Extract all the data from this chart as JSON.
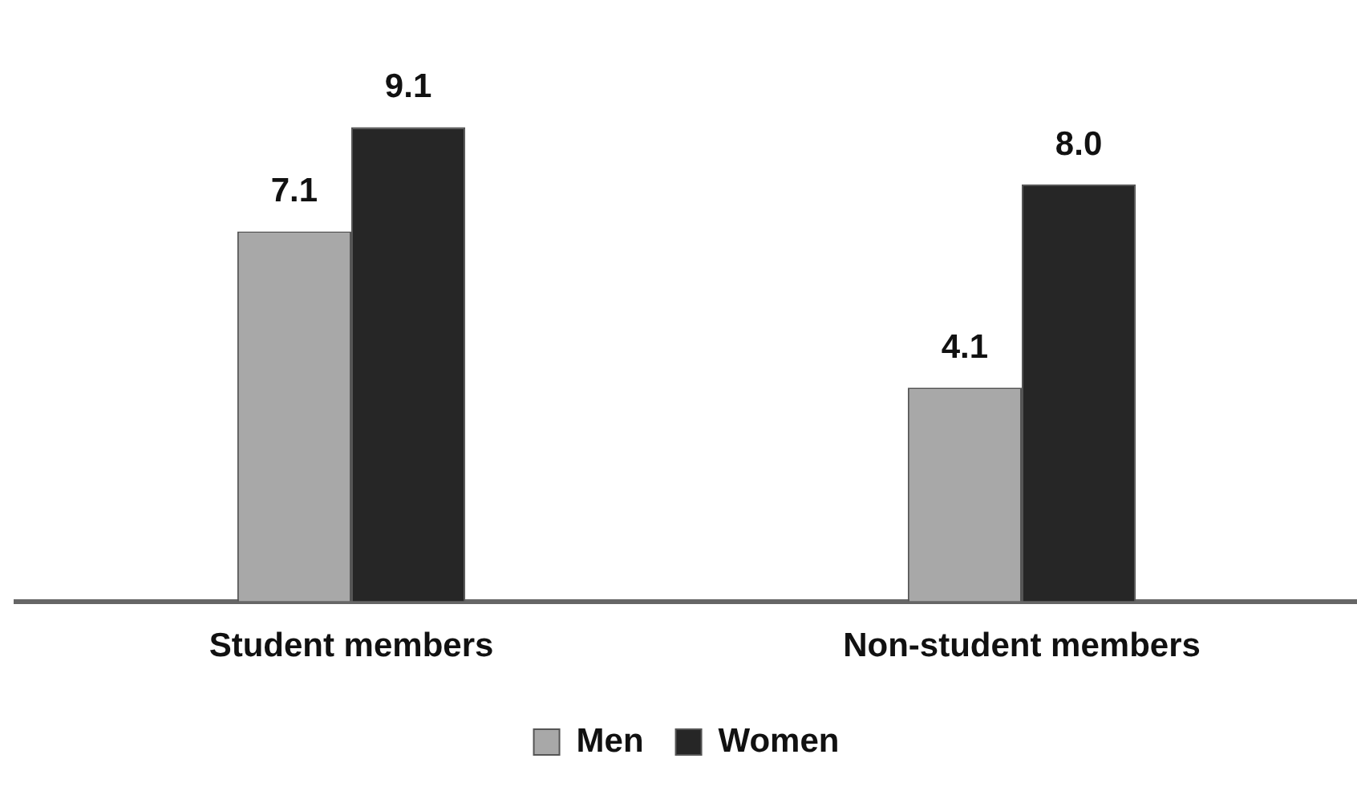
{
  "chart_data": {
    "type": "bar",
    "categories": [
      "Student members",
      "Non-student members"
    ],
    "series": [
      {
        "name": "Men",
        "color": "#a8a8a8",
        "values": [
          7.1,
          4.1
        ],
        "value_labels": [
          "7.1",
          "4.1"
        ]
      },
      {
        "name": "Women",
        "color": "#262626",
        "values": [
          9.1,
          8.0
        ],
        "value_labels": [
          "9.1",
          "8.0"
        ]
      }
    ],
    "legend": "bottom",
    "grid": false
  }
}
